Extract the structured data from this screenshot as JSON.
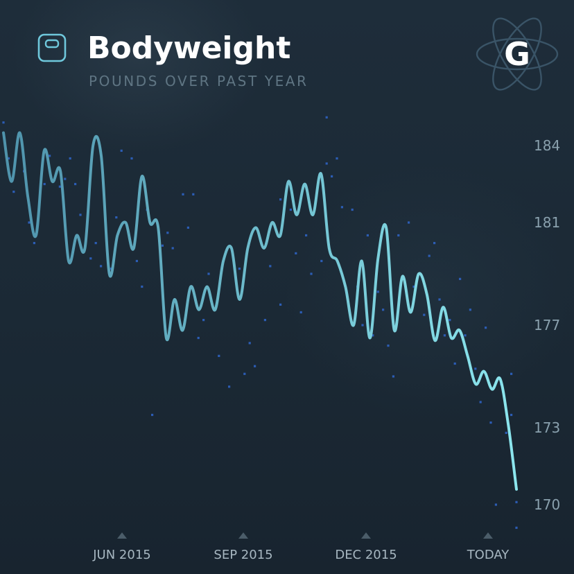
{
  "header": {
    "title": "Bodyweight",
    "subtitle": "POUNDS OVER PAST YEAR",
    "icon": "scale-icon",
    "logo": {
      "letter": "G",
      "icon": "atom-logo-icon"
    }
  },
  "colors": {
    "background": "#1b2a37",
    "line_start": "#4f93ac",
    "line_end": "#8ce6ee",
    "points": "#2f63c2",
    "grid": "#33444f"
  },
  "chart_data": {
    "type": "line",
    "title": "Bodyweight",
    "subtitle": "POUNDS OVER PAST YEAR",
    "xlabel": "",
    "ylabel": "",
    "x_ticks": [
      "JUN 2015",
      "SEP 2015",
      "DEC 2015",
      "TODAY"
    ],
    "y_ticks": [
      170,
      173,
      177,
      181,
      184
    ],
    "y_tick_labels": [
      "170",
      "173",
      "177",
      "181",
      "184"
    ],
    "ylim": [
      168,
      186
    ],
    "grid": true,
    "series": [
      {
        "values": [
          184.5,
          182.6,
          184.5,
          182.0,
          180.5,
          183.8,
          182.6,
          183.0,
          179.5,
          180.5,
          180.0,
          184.0,
          183.6,
          179.0,
          180.5,
          181.0,
          180.0,
          182.8,
          181.0,
          180.8,
          176.5,
          178.0,
          176.8,
          178.5,
          177.6,
          178.5,
          177.6,
          179.5,
          180.0,
          178.0,
          180.0,
          180.8,
          180.0,
          181.0,
          180.5,
          182.6,
          181.3,
          182.5,
          181.3,
          182.9,
          180.0,
          179.5,
          178.5,
          177.0,
          179.5,
          176.5,
          179.6,
          180.8,
          176.8,
          178.9,
          177.5,
          179.0,
          178.2,
          176.4,
          177.7,
          176.5,
          176.8,
          175.8,
          174.7,
          175.2,
          174.5,
          174.9,
          173.1,
          170.6
        ]
      }
    ],
    "daily_readings": [
      [
        0.0,
        184.9
      ],
      [
        0.01,
        183.5
      ],
      [
        0.02,
        182.2
      ],
      [
        0.04,
        183.0
      ],
      [
        0.05,
        181.0
      ],
      [
        0.06,
        180.2
      ],
      [
        0.08,
        182.5
      ],
      [
        0.09,
        183.6
      ],
      [
        0.11,
        182.4
      ],
      [
        0.12,
        182.7
      ],
      [
        0.13,
        183.5
      ],
      [
        0.14,
        182.5
      ],
      [
        0.15,
        181.3
      ],
      [
        0.17,
        179.6
      ],
      [
        0.18,
        180.2
      ],
      [
        0.19,
        179.3
      ],
      [
        0.21,
        179.2
      ],
      [
        0.22,
        181.2
      ],
      [
        0.23,
        183.8
      ],
      [
        0.25,
        183.5
      ],
      [
        0.26,
        179.5
      ],
      [
        0.27,
        178.5
      ],
      [
        0.28,
        181.5
      ],
      [
        0.29,
        173.5
      ],
      [
        0.31,
        180.1
      ],
      [
        0.32,
        180.6
      ],
      [
        0.33,
        180.0
      ],
      [
        0.35,
        182.1
      ],
      [
        0.36,
        180.8
      ],
      [
        0.38,
        176.5
      ],
      [
        0.39,
        177.2
      ],
      [
        0.4,
        179.0
      ],
      [
        0.42,
        175.8
      ],
      [
        0.44,
        174.6
      ],
      [
        0.46,
        179.2
      ],
      [
        0.47,
        175.1
      ],
      [
        0.48,
        176.3
      ],
      [
        0.49,
        175.4
      ],
      [
        0.51,
        177.2
      ],
      [
        0.52,
        179.3
      ],
      [
        0.54,
        177.8
      ],
      [
        0.56,
        181.5
      ],
      [
        0.57,
        179.8
      ],
      [
        0.58,
        177.5
      ],
      [
        0.59,
        180.5
      ],
      [
        0.61,
        182.0
      ],
      [
        0.62,
        179.5
      ],
      [
        0.63,
        183.3
      ],
      [
        0.64,
        182.8
      ],
      [
        0.65,
        183.5
      ],
      [
        0.66,
        181.6
      ],
      [
        0.68,
        181.5
      ],
      [
        0.69,
        178.5
      ],
      [
        0.7,
        177.0
      ],
      [
        0.71,
        180.5
      ],
      [
        0.72,
        176.6
      ],
      [
        0.73,
        178.3
      ],
      [
        0.74,
        177.6
      ],
      [
        0.75,
        176.2
      ],
      [
        0.76,
        175.0
      ],
      [
        0.77,
        180.5
      ],
      [
        0.79,
        181.0
      ],
      [
        0.8,
        178.5
      ],
      [
        0.81,
        179.0
      ],
      [
        0.82,
        177.4
      ],
      [
        0.83,
        179.7
      ],
      [
        0.84,
        180.2
      ],
      [
        0.85,
        178.0
      ],
      [
        0.86,
        176.6
      ],
      [
        0.87,
        177.2
      ],
      [
        0.88,
        175.5
      ],
      [
        0.89,
        178.8
      ],
      [
        0.9,
        176.6
      ],
      [
        0.91,
        177.6
      ],
      [
        0.92,
        175.3
      ],
      [
        0.93,
        174.0
      ],
      [
        0.94,
        176.9
      ],
      [
        0.95,
        173.2
      ],
      [
        0.96,
        170.0
      ],
      [
        0.97,
        174.7
      ],
      [
        0.98,
        172.8
      ],
      [
        0.99,
        175.1
      ],
      [
        1.0,
        170.1
      ],
      [
        1.0,
        169.1
      ],
      [
        0.99,
        173.5
      ],
      [
        0.6,
        179.0
      ],
      [
        0.37,
        182.1
      ],
      [
        0.63,
        185.1
      ],
      [
        0.54,
        181.9
      ]
    ]
  }
}
